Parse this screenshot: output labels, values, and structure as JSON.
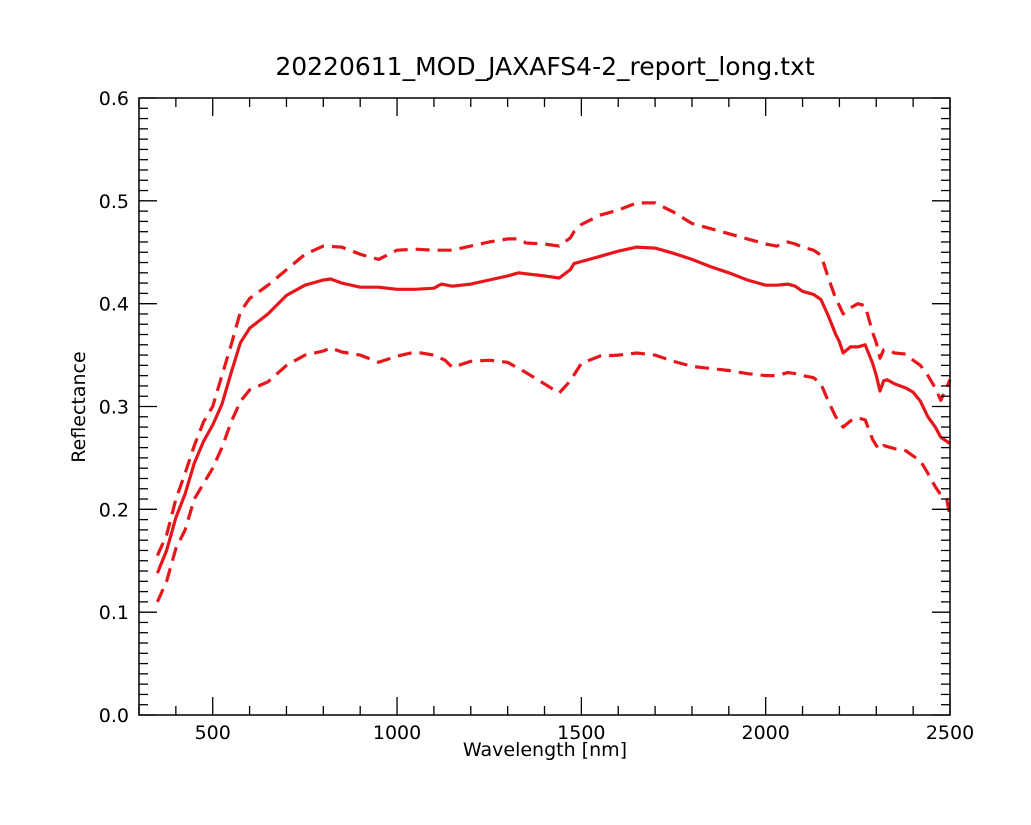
{
  "chart_data": {
    "type": "line",
    "title": "20220611_MOD_JAXAFS4-2_report_long.txt",
    "xlabel": "Wavelength [nm]",
    "ylabel": "Reflectance",
    "xlim": [
      300,
      2500
    ],
    "ylim": [
      0.0,
      0.6
    ],
    "x_ticks": [
      500,
      1000,
      1500,
      2000,
      2500
    ],
    "x_tick_labels": [
      "500",
      "1000",
      "1500",
      "2000",
      "2500"
    ],
    "y_ticks": [
      0.0,
      0.1,
      0.2,
      0.3,
      0.4,
      0.5,
      0.6
    ],
    "y_tick_labels": [
      "0.0",
      "0.1",
      "0.2",
      "0.3",
      "0.4",
      "0.5",
      "0.6"
    ],
    "grid": false,
    "legend": "none",
    "colors": {
      "series": "#e8161b",
      "axes": "#000000"
    },
    "series": [
      {
        "style": "solid",
        "points": [
          [
            350,
            0.138
          ],
          [
            375,
            0.16
          ],
          [
            400,
            0.192
          ],
          [
            425,
            0.215
          ],
          [
            450,
            0.245
          ],
          [
            475,
            0.266
          ],
          [
            500,
            0.282
          ],
          [
            525,
            0.302
          ],
          [
            550,
            0.333
          ],
          [
            575,
            0.362
          ],
          [
            600,
            0.376
          ],
          [
            650,
            0.39
          ],
          [
            700,
            0.408
          ],
          [
            750,
            0.418
          ],
          [
            800,
            0.423
          ],
          [
            820,
            0.424
          ],
          [
            850,
            0.42
          ],
          [
            900,
            0.416
          ],
          [
            950,
            0.416
          ],
          [
            1000,
            0.414
          ],
          [
            1050,
            0.414
          ],
          [
            1100,
            0.415
          ],
          [
            1120,
            0.419
          ],
          [
            1150,
            0.417
          ],
          [
            1200,
            0.419
          ],
          [
            1250,
            0.423
          ],
          [
            1300,
            0.427
          ],
          [
            1330,
            0.43
          ],
          [
            1350,
            0.429
          ],
          [
            1400,
            0.427
          ],
          [
            1440,
            0.425
          ],
          [
            1470,
            0.433
          ],
          [
            1480,
            0.439
          ],
          [
            1500,
            0.441
          ],
          [
            1550,
            0.446
          ],
          [
            1600,
            0.451
          ],
          [
            1650,
            0.455
          ],
          [
            1700,
            0.454
          ],
          [
            1750,
            0.449
          ],
          [
            1800,
            0.443
          ],
          [
            1850,
            0.436
          ],
          [
            1900,
            0.43
          ],
          [
            1950,
            0.423
          ],
          [
            2000,
            0.418
          ],
          [
            2030,
            0.418
          ],
          [
            2060,
            0.419
          ],
          [
            2080,
            0.417
          ],
          [
            2100,
            0.412
          ],
          [
            2130,
            0.409
          ],
          [
            2150,
            0.404
          ],
          [
            2170,
            0.388
          ],
          [
            2190,
            0.37
          ],
          [
            2200,
            0.363
          ],
          [
            2210,
            0.352
          ],
          [
            2230,
            0.358
          ],
          [
            2250,
            0.358
          ],
          [
            2270,
            0.36
          ],
          [
            2290,
            0.342
          ],
          [
            2300,
            0.33
          ],
          [
            2310,
            0.315
          ],
          [
            2320,
            0.325
          ],
          [
            2330,
            0.326
          ],
          [
            2350,
            0.322
          ],
          [
            2380,
            0.318
          ],
          [
            2400,
            0.314
          ],
          [
            2420,
            0.305
          ],
          [
            2440,
            0.29
          ],
          [
            2460,
            0.28
          ],
          [
            2475,
            0.27
          ],
          [
            2500,
            0.264
          ]
        ]
      },
      {
        "style": "dashed",
        "points": [
          [
            350,
            0.155
          ],
          [
            375,
            0.175
          ],
          [
            400,
            0.21
          ],
          [
            425,
            0.235
          ],
          [
            450,
            0.262
          ],
          [
            475,
            0.285
          ],
          [
            500,
            0.3
          ],
          [
            525,
            0.33
          ],
          [
            550,
            0.36
          ],
          [
            575,
            0.392
          ],
          [
            600,
            0.405
          ],
          [
            650,
            0.418
          ],
          [
            700,
            0.433
          ],
          [
            750,
            0.448
          ],
          [
            800,
            0.456
          ],
          [
            850,
            0.455
          ],
          [
            900,
            0.448
          ],
          [
            950,
            0.443
          ],
          [
            1000,
            0.452
          ],
          [
            1050,
            0.453
          ],
          [
            1100,
            0.452
          ],
          [
            1150,
            0.452
          ],
          [
            1200,
            0.456
          ],
          [
            1250,
            0.46
          ],
          [
            1300,
            0.463
          ],
          [
            1330,
            0.463
          ],
          [
            1350,
            0.459
          ],
          [
            1400,
            0.458
          ],
          [
            1440,
            0.456
          ],
          [
            1470,
            0.464
          ],
          [
            1480,
            0.47
          ],
          [
            1500,
            0.477
          ],
          [
            1550,
            0.486
          ],
          [
            1600,
            0.491
          ],
          [
            1650,
            0.498
          ],
          [
            1700,
            0.498
          ],
          [
            1750,
            0.489
          ],
          [
            1800,
            0.478
          ],
          [
            1850,
            0.473
          ],
          [
            1900,
            0.468
          ],
          [
            1950,
            0.463
          ],
          [
            2000,
            0.458
          ],
          [
            2030,
            0.456
          ],
          [
            2060,
            0.46
          ],
          [
            2080,
            0.458
          ],
          [
            2100,
            0.455
          ],
          [
            2130,
            0.452
          ],
          [
            2150,
            0.447
          ],
          [
            2170,
            0.425
          ],
          [
            2190,
            0.405
          ],
          [
            2200,
            0.398
          ],
          [
            2210,
            0.39
          ],
          [
            2230,
            0.396
          ],
          [
            2250,
            0.4
          ],
          [
            2270,
            0.398
          ],
          [
            2290,
            0.372
          ],
          [
            2300,
            0.362
          ],
          [
            2310,
            0.347
          ],
          [
            2320,
            0.355
          ],
          [
            2330,
            0.355
          ],
          [
            2350,
            0.352
          ],
          [
            2380,
            0.351
          ],
          [
            2400,
            0.345
          ],
          [
            2420,
            0.34
          ],
          [
            2440,
            0.33
          ],
          [
            2460,
            0.318
          ],
          [
            2475,
            0.306
          ],
          [
            2490,
            0.318
          ],
          [
            2500,
            0.326
          ]
        ]
      },
      {
        "style": "dashed",
        "points": [
          [
            350,
            0.11
          ],
          [
            375,
            0.13
          ],
          [
            400,
            0.162
          ],
          [
            425,
            0.18
          ],
          [
            450,
            0.21
          ],
          [
            475,
            0.225
          ],
          [
            500,
            0.24
          ],
          [
            525,
            0.26
          ],
          [
            550,
            0.285
          ],
          [
            575,
            0.305
          ],
          [
            600,
            0.316
          ],
          [
            650,
            0.324
          ],
          [
            700,
            0.34
          ],
          [
            750,
            0.35
          ],
          [
            800,
            0.354
          ],
          [
            820,
            0.357
          ],
          [
            850,
            0.353
          ],
          [
            900,
            0.35
          ],
          [
            950,
            0.343
          ],
          [
            1000,
            0.349
          ],
          [
            1050,
            0.353
          ],
          [
            1100,
            0.35
          ],
          [
            1130,
            0.345
          ],
          [
            1150,
            0.338
          ],
          [
            1200,
            0.344
          ],
          [
            1250,
            0.345
          ],
          [
            1300,
            0.343
          ],
          [
            1350,
            0.333
          ],
          [
            1400,
            0.322
          ],
          [
            1440,
            0.313
          ],
          [
            1470,
            0.325
          ],
          [
            1500,
            0.342
          ],
          [
            1550,
            0.349
          ],
          [
            1600,
            0.35
          ],
          [
            1650,
            0.352
          ],
          [
            1700,
            0.35
          ],
          [
            1750,
            0.344
          ],
          [
            1800,
            0.339
          ],
          [
            1850,
            0.337
          ],
          [
            1900,
            0.335
          ],
          [
            1950,
            0.332
          ],
          [
            2000,
            0.33
          ],
          [
            2030,
            0.33
          ],
          [
            2060,
            0.333
          ],
          [
            2080,
            0.332
          ],
          [
            2100,
            0.33
          ],
          [
            2130,
            0.328
          ],
          [
            2150,
            0.322
          ],
          [
            2170,
            0.305
          ],
          [
            2190,
            0.29
          ],
          [
            2200,
            0.285
          ],
          [
            2210,
            0.28
          ],
          [
            2230,
            0.286
          ],
          [
            2250,
            0.289
          ],
          [
            2270,
            0.287
          ],
          [
            2290,
            0.268
          ],
          [
            2300,
            0.262
          ],
          [
            2310,
            0.258
          ],
          [
            2320,
            0.262
          ],
          [
            2330,
            0.261
          ],
          [
            2350,
            0.259
          ],
          [
            2380,
            0.257
          ],
          [
            2400,
            0.252
          ],
          [
            2420,
            0.247
          ],
          [
            2440,
            0.235
          ],
          [
            2460,
            0.222
          ],
          [
            2475,
            0.214
          ],
          [
            2490,
            0.212
          ],
          [
            2500,
            0.193
          ]
        ]
      }
    ]
  }
}
